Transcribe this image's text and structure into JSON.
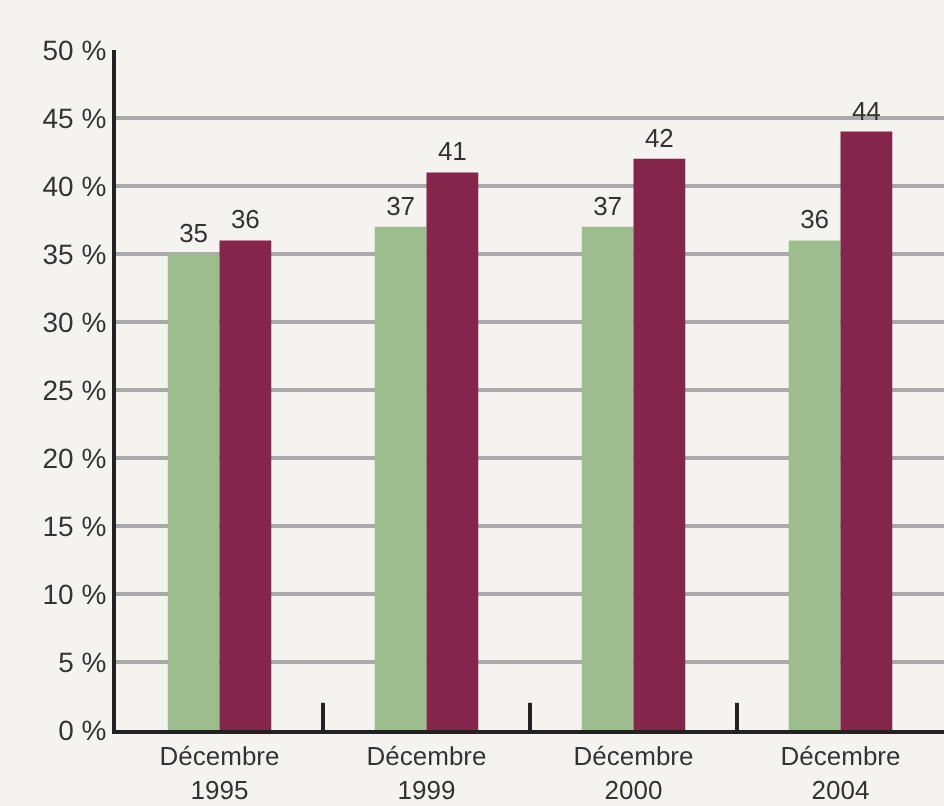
{
  "chart_data": {
    "type": "bar",
    "categories": [
      "Décembre\n1995",
      "Décembre\n1999",
      "Décembre\n2000",
      "Décembre\n2004"
    ],
    "series": [
      {
        "color": "#9dbd8e",
        "values": [
          35,
          37,
          37,
          36
        ]
      },
      {
        "color": "#84264b",
        "values": [
          36,
          41,
          42,
          44
        ]
      }
    ],
    "ylim": [
      0,
      50
    ],
    "yticks": [
      {
        "value": 0,
        "label": "0 %"
      },
      {
        "value": 5,
        "label": "5 %"
      },
      {
        "value": 10,
        "label": "10 %"
      },
      {
        "value": 15,
        "label": "15 %"
      },
      {
        "value": 20,
        "label": "20 %"
      },
      {
        "value": 25,
        "label": "25 %"
      },
      {
        "value": 30,
        "label": "30 %"
      },
      {
        "value": 35,
        "label": "35 %"
      },
      {
        "value": 40,
        "label": "40 %"
      },
      {
        "value": 45,
        "label": "45 %"
      },
      {
        "value": 50,
        "label": "50 %"
      }
    ],
    "grid": "y",
    "data_labels": true
  }
}
